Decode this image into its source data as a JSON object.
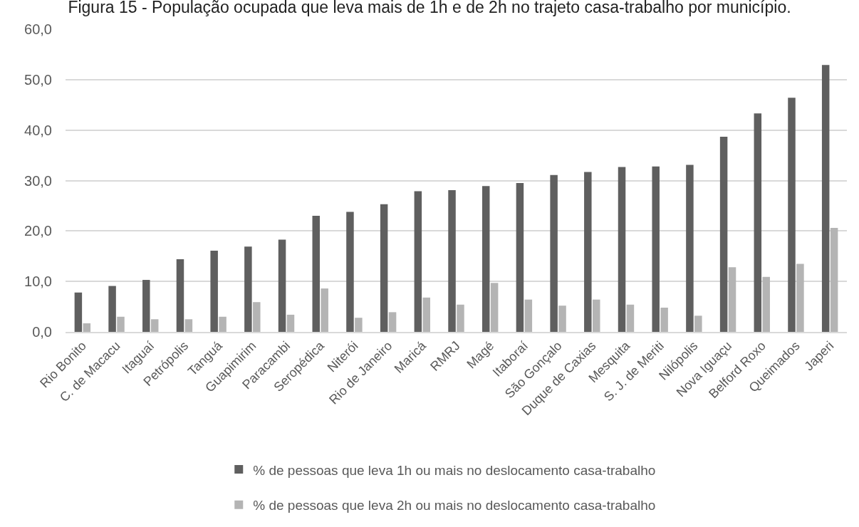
{
  "chart_data": {
    "type": "bar",
    "title": "Figura 15 - População ocupada que leva mais de 1h e de 2h no trajeto casa-trabalho por município.",
    "categories": [
      "Rio Bonito",
      "C. de Macacu",
      "Itaguaí",
      "Petrópolis",
      "Tanguá",
      "Guapimirim",
      "Paracambi",
      "Seropédica",
      "Niterói",
      "Rio de Janeiro",
      "Maricá",
      "RMRJ",
      "Magé",
      "Itaboraí",
      "São Gonçalo",
      "Duque de Caxias",
      "Mesquita",
      "S. J. de Meriti",
      "Nilópolis",
      "Nova Iguaçu",
      "Belford Roxo",
      "Queimados",
      "Japeri"
    ],
    "series": [
      {
        "name": "% de pessoas que leva 1h ou mais no deslocamento casa-trabalho",
        "color": "#5f5f5f",
        "values": [
          7.8,
          9.1,
          10.3,
          14.4,
          16.1,
          16.9,
          18.3,
          23.0,
          23.8,
          25.3,
          27.9,
          28.1,
          28.9,
          29.5,
          31.1,
          31.7,
          32.7,
          32.8,
          33.1,
          38.7,
          43.3,
          46.4,
          52.9
        ]
      },
      {
        "name": "% de pessoas que leva 2h ou mais no deslocamento casa-trabalho",
        "color": "#b4b4b4",
        "values": [
          1.7,
          3.0,
          2.5,
          2.5,
          3.0,
          5.9,
          3.4,
          8.6,
          2.8,
          3.9,
          6.8,
          5.4,
          9.7,
          6.4,
          5.2,
          6.4,
          5.4,
          4.8,
          3.2,
          12.8,
          10.9,
          13.5,
          20.6
        ]
      }
    ],
    "ylim": [
      0,
      60
    ],
    "yticks": [
      {
        "value": 0,
        "label": "0,0"
      },
      {
        "value": 10,
        "label": "10,0"
      },
      {
        "value": 20,
        "label": "20,0"
      },
      {
        "value": 30,
        "label": "30,0"
      },
      {
        "value": 40,
        "label": "40,0"
      },
      {
        "value": 50,
        "label": "50,0"
      },
      {
        "value": 60,
        "label": "60,0"
      }
    ],
    "grid": "y",
    "legend": "bottom"
  }
}
